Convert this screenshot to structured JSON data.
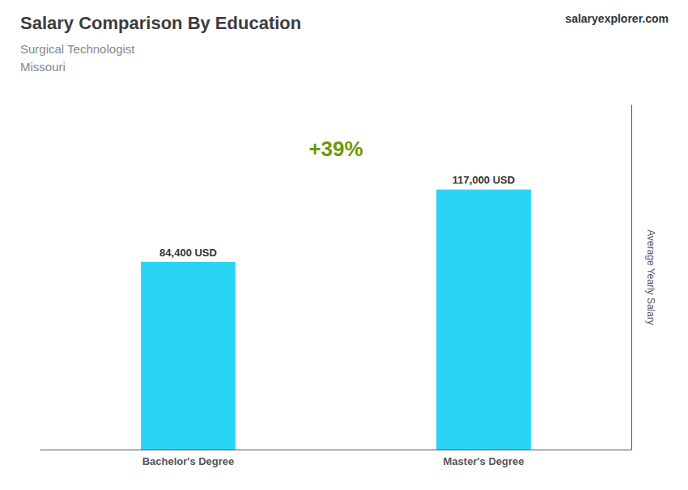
{
  "chart_data": {
    "type": "bar",
    "title": "Salary Comparison By Education",
    "subtitle": [
      "Surgical Technologist",
      "Missouri"
    ],
    "ylabel": "Average Yearly Salary",
    "annotations": [
      "+39%",
      "salaryexplorer.com"
    ],
    "categories": [
      "Bachelor's Degree",
      "Master's Degree"
    ],
    "values": [
      84400,
      117000
    ],
    "value_labels": [
      "84,400 USD",
      "117,000 USD"
    ],
    "data_labels": true,
    "color": "#29D4F5",
    "ylim": [
      0,
      155000
    ],
    "tick_labels": "x",
    "grid": false
  }
}
